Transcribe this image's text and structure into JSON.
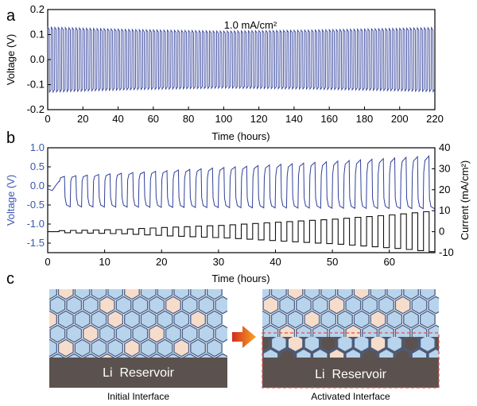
{
  "chart_data": [
    {
      "type": "line",
      "panel_label": "a",
      "annotation": "1.0 mA/cm²",
      "xlabel": "Time (hours)",
      "ylabel": "Voltage (V)",
      "xlim": [
        0,
        220
      ],
      "ylim": [
        -0.2,
        0.2
      ],
      "x_ticks": [
        0,
        20,
        40,
        60,
        80,
        100,
        120,
        140,
        160,
        180,
        200,
        220
      ],
      "y_ticks": [
        0.2,
        0.1,
        0.0,
        -0.1,
        -0.2
      ],
      "y_tick_labels": [
        "0.2",
        "0.1",
        "0.0",
        "-0.1",
        "-0.2"
      ],
      "series": [
        {
          "name": "voltage",
          "color": "#2f3f9a",
          "cycles": 110,
          "period_hours": 2,
          "amplitude_points": [
            [
              0,
              0.13
            ],
            [
              50,
              0.12
            ],
            [
              100,
              0.114
            ],
            [
              150,
              0.118
            ],
            [
              200,
              0.125
            ],
            [
              220,
              0.128
            ]
          ]
        }
      ]
    },
    {
      "type": "line",
      "panel_label": "b",
      "xlabel": "Time (hours)",
      "ylabel": "Voltage (V)",
      "ylabel_color": "#3a56b0",
      "y2label": "Current (mA/cm²)",
      "xlim": [
        0,
        68
      ],
      "ylim": [
        -1.75,
        1.0
      ],
      "y2lim": [
        -10,
        40
      ],
      "x_ticks": [
        0,
        10,
        20,
        30,
        40,
        50,
        60
      ],
      "y_ticks": [
        1.0,
        0.5,
        0.0,
        -0.5,
        -1.0,
        -1.5
      ],
      "y_tick_labels": [
        "1.0",
        "0.5",
        "0.0",
        "-0.5",
        "-1.0",
        "-1.5"
      ],
      "y2_ticks": [
        40,
        30,
        20,
        10,
        0,
        -10
      ],
      "y2_tick_labels": [
        "40",
        "30",
        "20",
        "10",
        "0",
        "-10"
      ],
      "series": [
        {
          "name": "voltage",
          "axis": "left",
          "color": "#2f3f9a",
          "cycles": 34,
          "start_hour": 2,
          "period_hours": 2,
          "peak_range": [
            0.25,
            0.8
          ],
          "trough_range": [
            -0.55,
            -0.6
          ]
        },
        {
          "name": "current",
          "axis": "right",
          "color": "#111111",
          "start_hour": 2,
          "period_hours": 2,
          "amplitude_ramp": [
            [
              2,
              0.5
            ],
            [
              12,
              1.0
            ],
            [
              20,
              2.0
            ],
            [
              30,
              3.0
            ],
            [
              40,
              4.5
            ],
            [
              50,
              6.0
            ],
            [
              60,
              8.0
            ],
            [
              68,
              10.0
            ]
          ]
        }
      ]
    }
  ],
  "panel_c": {
    "label": "c",
    "left_box": {
      "reservoir": "Li  Reservoir",
      "caption": "Initial Interface"
    },
    "right_box": {
      "reservoir": "Li  Reservoir",
      "caption": "Activated Interface"
    },
    "colors": {
      "blue_hex": "#b8d4ec",
      "peach_hex": "#f6dcca",
      "hex_edge": "#4a5f86",
      "reservoir": "#5b524f",
      "dashed": "#d9534f",
      "arrow": "#e8671a"
    }
  }
}
